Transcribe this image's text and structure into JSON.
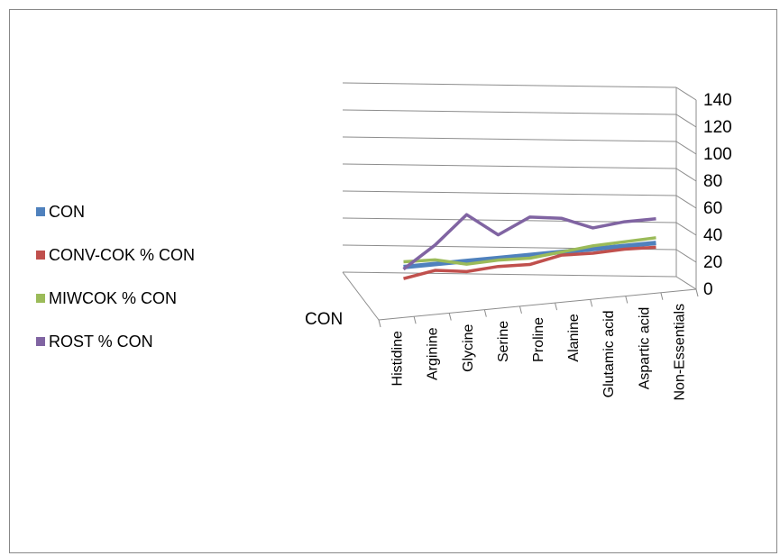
{
  "chart_data": {
    "type": "line",
    "title": "",
    "xlabel": "",
    "ylabel": "",
    "ylim": [
      0,
      140
    ],
    "yticks": [
      "0",
      "20",
      "40",
      "60",
      "80",
      "100",
      "120",
      "140"
    ],
    "depth_label": "CON",
    "grid": true,
    "legend_position": "left",
    "categories": [
      "Histidine",
      "Arginine",
      "Glycine",
      "Serine",
      "Proline",
      "Alanine",
      "Glutamic acid",
      "Aspartic acid",
      "Non-Essentials"
    ],
    "series": [
      {
        "name": "CON",
        "color": "#4f81bd",
        "values": [
          100,
          100,
          100,
          100,
          100,
          100,
          100,
          100,
          100
        ]
      },
      {
        "name": "CONV-COK % CON",
        "color": "#c0504d",
        "values": [
          89,
          94,
          90,
          92,
          91,
          97,
          96,
          97,
          96
        ]
      },
      {
        "name": "MIWCOK % CON",
        "color": "#9bbb59",
        "values": [
          105,
          104,
          97,
          98,
          97,
          100,
          103,
          104,
          105
        ]
      },
      {
        "name": "ROST % CON",
        "color": "#8064a2",
        "values": [
          98,
          118,
          144,
          122,
          136,
          132,
          120,
          123,
          123
        ]
      }
    ]
  }
}
